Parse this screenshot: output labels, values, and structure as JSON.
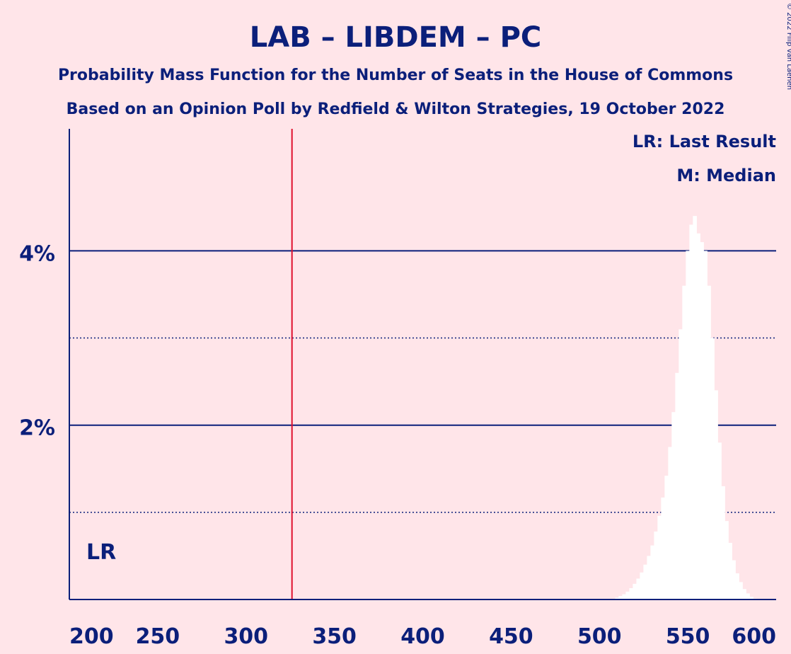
{
  "chart_data": {
    "type": "bar",
    "title": "LAB – LIBDEM – PC",
    "subtitle_1": "Probability Mass Function for the Number of Seats in the House of Commons",
    "subtitle_2": "Based on an Opinion Poll by Redfield & Wilton Strategies, 19 October 2022",
    "copyright": "© 2022 Filip van Laenen",
    "legend": [
      "LR: Last Result",
      "M: Median"
    ],
    "legend_position": "top-right",
    "last_result_label": "LR",
    "last_result_seats": 326,
    "xlim": [
      200,
      600
    ],
    "ylim": [
      0,
      0.054
    ],
    "x_ticks": [
      200,
      250,
      300,
      350,
      400,
      450,
      500,
      550,
      600
    ],
    "x_tick_labels": [
      "200",
      "250",
      "300",
      "350",
      "400",
      "450",
      "500",
      "550",
      "600"
    ],
    "y_ticks": [
      0.02,
      0.04
    ],
    "y_tick_labels": [
      "2%",
      "4%"
    ],
    "y_minor_gridlines": [
      0.01,
      0.03
    ],
    "colors": {
      "background": "#FFE5E9",
      "text": "#0B1F7A",
      "bar": "#FFFFFF",
      "last_result_line": "#E0102D"
    },
    "x": [
      510,
      512,
      514,
      516,
      518,
      520,
      522,
      524,
      526,
      528,
      530,
      532,
      534,
      536,
      538,
      540,
      542,
      544,
      546,
      548,
      550,
      552,
      554,
      556,
      558,
      560,
      562,
      564,
      566,
      568,
      570,
      572,
      574,
      576,
      578,
      580,
      582,
      584,
      586,
      588
    ],
    "values": [
      0.0002,
      0.0004,
      0.0006,
      0.0009,
      0.0013,
      0.0018,
      0.0024,
      0.0031,
      0.004,
      0.005,
      0.0062,
      0.0078,
      0.0096,
      0.0117,
      0.0142,
      0.0175,
      0.0215,
      0.026,
      0.031,
      0.036,
      0.04,
      0.043,
      0.044,
      0.042,
      0.041,
      0.04,
      0.036,
      0.03,
      0.024,
      0.018,
      0.013,
      0.009,
      0.0065,
      0.0045,
      0.003,
      0.002,
      0.0012,
      0.0007,
      0.0003,
      0.0001
    ]
  }
}
